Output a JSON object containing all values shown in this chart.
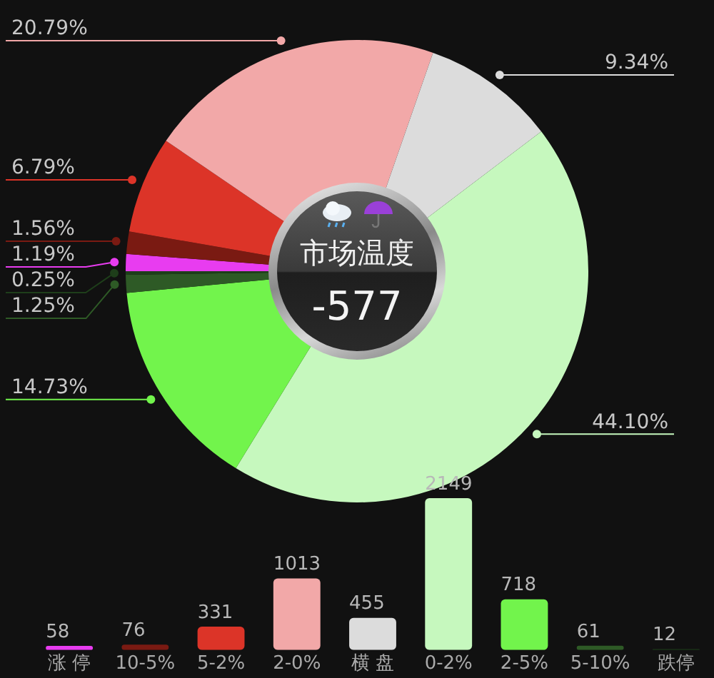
{
  "chart_data": [
    {
      "type": "donut",
      "categories": [
        null,
        null,
        null,
        null,
        null,
        null,
        null,
        null,
        null
      ],
      "values": [
        1.19,
        1.56,
        6.79,
        20.79,
        9.34,
        44.1,
        14.73,
        1.25,
        0.25
      ],
      "colors": [
        "#e83cf0",
        "#7a1a12",
        "#dc3428",
        "#f2a8a8",
        "#dcdcdc",
        "#c6f8be",
        "#72f44c",
        "#2e5a26",
        "#1e3e1a"
      ],
      "value_labels": [
        "1.19%",
        "1.56%",
        "6.79%",
        "20.79%",
        "9.34%",
        "44.10%",
        "14.73%",
        "1.25%",
        "0.25%"
      ],
      "annotations": [
        "市场温度",
        "-577"
      ],
      "legend": false
    },
    {
      "type": "bar",
      "categories": [
        "涨 停",
        "10-5%",
        "5-2%",
        "2-0%",
        "横 盘",
        "0-2%",
        "2-5%",
        "5-10%",
        "跌停"
      ],
      "values": [
        58,
        76,
        331,
        1013,
        455,
        2149,
        718,
        61,
        12
      ],
      "colors": [
        "#e83cf0",
        "#7a1a12",
        "#dc3428",
        "#f2a8a8",
        "#dcdcdc",
        "#c6f8be",
        "#72f44c",
        "#2e5a26",
        "#1e3e1a"
      ],
      "data_labels": true,
      "tick_labels": "x",
      "grid": false,
      "legend": false
    }
  ]
}
